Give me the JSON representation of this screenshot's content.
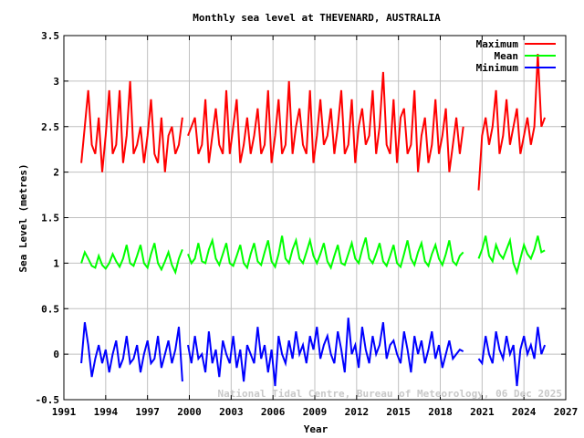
{
  "chart_data": {
    "type": "line",
    "title": "Monthly sea level at THEVENARD, AUSTRALIA",
    "xlabel": "Year",
    "ylabel": "Sea Level (metres)",
    "xlim": [
      1991,
      2027
    ],
    "ylim": [
      -0.5,
      3.5
    ],
    "xticks": [
      1991,
      1994,
      1997,
      2000,
      2003,
      2006,
      2009,
      2012,
      2015,
      2018,
      2021,
      2024,
      2027
    ],
    "yticks": [
      -0.5,
      0,
      0.5,
      1,
      1.5,
      2,
      2.5,
      3,
      3.5
    ],
    "ytick_labels": [
      "-0.5",
      "0",
      "0.5",
      "1",
      "1.5",
      "2",
      "2.5",
      "3",
      "3.5"
    ],
    "grid": true,
    "legend_position": "top-right",
    "annotation": "National Tidal Centre, Bureau of Meteorology, 06 Dec 2025",
    "step": 0.25,
    "series": [
      {
        "name": "Maximum",
        "color": "#ff0000",
        "segments": [
          {
            "start": 1992.25,
            "values": [
              2.1,
              2.5,
              2.9,
              2.3,
              2.2,
              2.6,
              2.0,
              2.4,
              2.9,
              2.2,
              2.3,
              2.9,
              2.1,
              2.4,
              3.0,
              2.2,
              2.3,
              2.5,
              2.1,
              2.4,
              2.8,
              2.2,
              2.1,
              2.6,
              2.0,
              2.4,
              2.5,
              2.2,
              2.3,
              2.6
            ]
          },
          {
            "start": 1999.9,
            "values": [
              2.4,
              2.5,
              2.6,
              2.2,
              2.3,
              2.8,
              2.1,
              2.4,
              2.7,
              2.3,
              2.2,
              2.9,
              2.2,
              2.5,
              2.8,
              2.1,
              2.3,
              2.6,
              2.2,
              2.4,
              2.7,
              2.2,
              2.3,
              2.9,
              2.1,
              2.4,
              2.8,
              2.2,
              2.3,
              3.0,
              2.2,
              2.5,
              2.7,
              2.3,
              2.2,
              2.9,
              2.1,
              2.4,
              2.8,
              2.3,
              2.4,
              2.7,
              2.2,
              2.5,
              2.9,
              2.2,
              2.3,
              2.8,
              2.1,
              2.5,
              2.7,
              2.3,
              2.4,
              2.9,
              2.2,
              2.5,
              3.1,
              2.3,
              2.2,
              2.8,
              2.1,
              2.6,
              2.7,
              2.2,
              2.3,
              2.9,
              2.0,
              2.4,
              2.6,
              2.1,
              2.3,
              2.8,
              2.2,
              2.4,
              2.7,
              2.0,
              2.3,
              2.6,
              2.2,
              2.5
            ]
          },
          {
            "start": 2020.75,
            "values": [
              1.8,
              2.4,
              2.6,
              2.3,
              2.5,
              2.9,
              2.2,
              2.4,
              2.8,
              2.3,
              2.5,
              2.7,
              2.2,
              2.4,
              2.6,
              2.3,
              2.5,
              3.3,
              2.5,
              2.6
            ]
          }
        ]
      },
      {
        "name": "Mean",
        "color": "#00ff00",
        "segments": [
          {
            "start": 1992.25,
            "values": [
              1.0,
              1.12,
              1.05,
              0.97,
              0.95,
              1.08,
              0.98,
              0.94,
              1.0,
              1.1,
              1.02,
              0.96,
              1.05,
              1.2,
              1.0,
              0.97,
              1.08,
              1.2,
              1.0,
              0.95,
              1.1,
              1.22,
              1.0,
              0.93,
              1.02,
              1.12,
              0.98,
              0.9,
              1.05,
              1.15
            ]
          },
          {
            "start": 1999.9,
            "values": [
              1.1,
              1.0,
              1.05,
              1.22,
              1.02,
              1.0,
              1.15,
              1.25,
              1.05,
              0.98,
              1.1,
              1.22,
              1.0,
              0.97,
              1.08,
              1.2,
              1.0,
              0.95,
              1.1,
              1.22,
              1.02,
              0.98,
              1.12,
              1.25,
              1.02,
              0.96,
              1.1,
              1.3,
              1.05,
              1.0,
              1.15,
              1.25,
              1.05,
              1.0,
              1.12,
              1.25,
              1.08,
              1.0,
              1.1,
              1.22,
              1.02,
              0.95,
              1.08,
              1.2,
              1.0,
              0.98,
              1.1,
              1.22,
              1.05,
              1.0,
              1.15,
              1.28,
              1.05,
              1.0,
              1.1,
              1.22,
              1.02,
              0.97,
              1.08,
              1.2,
              1.0,
              0.96,
              1.1,
              1.25,
              1.05,
              0.98,
              1.12,
              1.22,
              1.02,
              0.97,
              1.1,
              1.2,
              1.05,
              0.98,
              1.1,
              1.25,
              1.02,
              0.98,
              1.08,
              1.12
            ]
          },
          {
            "start": 2020.75,
            "values": [
              1.05,
              1.15,
              1.3,
              1.08,
              1.02,
              1.2,
              1.1,
              1.05,
              1.15,
              1.25,
              1.0,
              0.9,
              1.05,
              1.2,
              1.1,
              1.05,
              1.15,
              1.3,
              1.12,
              1.14
            ]
          }
        ]
      },
      {
        "name": "Minimum",
        "color": "#0000ff",
        "segments": [
          {
            "start": 1992.25,
            "values": [
              -0.1,
              0.35,
              0.1,
              -0.25,
              -0.05,
              0.1,
              -0.1,
              0.05,
              -0.2,
              0.0,
              0.15,
              -0.15,
              -0.05,
              0.2,
              -0.1,
              -0.05,
              0.1,
              -0.2,
              0.0,
              0.15,
              -0.1,
              -0.05,
              0.2,
              -0.15,
              0.0,
              0.15,
              -0.1,
              0.05,
              0.3,
              -0.3
            ]
          },
          {
            "start": 1999.9,
            "values": [
              0.1,
              -0.1,
              0.2,
              -0.05,
              0.0,
              -0.2,
              0.25,
              -0.1,
              0.05,
              -0.25,
              0.15,
              0.0,
              -0.1,
              0.2,
              -0.15,
              0.05,
              -0.3,
              0.1,
              0.0,
              -0.1,
              0.3,
              -0.05,
              0.1,
              -0.2,
              0.05,
              -0.35,
              0.2,
              0.0,
              -0.1,
              0.15,
              -0.05,
              0.25,
              0.0,
              0.1,
              -0.1,
              0.2,
              0.05,
              0.3,
              -0.05,
              0.1,
              0.2,
              0.0,
              -0.1,
              0.25,
              0.05,
              -0.2,
              0.4,
              0.0,
              0.1,
              -0.15,
              0.3,
              0.05,
              -0.1,
              0.2,
              0.0,
              0.1,
              0.35,
              -0.05,
              0.1,
              0.15,
              0.0,
              -0.1,
              0.25,
              0.05,
              -0.2,
              0.2,
              0.0,
              0.15,
              -0.1,
              0.05,
              0.25,
              -0.05,
              0.1,
              -0.15,
              0.0,
              0.15,
              -0.05,
              0.0,
              0.05,
              0.03
            ]
          },
          {
            "start": 2020.75,
            "values": [
              -0.05,
              -0.1,
              0.2,
              0.0,
              -0.1,
              0.25,
              0.05,
              -0.05,
              0.2,
              0.0,
              0.1,
              -0.35,
              0.05,
              0.2,
              0.0,
              0.1,
              -0.05,
              0.3,
              0.0,
              0.1
            ]
          }
        ]
      }
    ]
  }
}
